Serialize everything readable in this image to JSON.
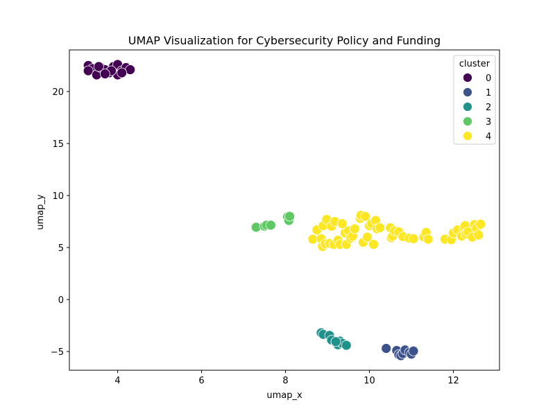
{
  "chart_data": {
    "type": "scatter",
    "title": "UMAP Visualization for Cybersecurity Policy and Funding",
    "xlabel": "umap_x",
    "ylabel": "umap_y",
    "xlim": [
      2.85,
      13.1
    ],
    "ylim": [
      -6.8,
      24.0
    ],
    "xticks": [
      4,
      6,
      8,
      10,
      12
    ],
    "yticks": [
      -5,
      0,
      5,
      10,
      15,
      20
    ],
    "legend": {
      "title": "cluster",
      "position": "top-right"
    },
    "grid": false,
    "series": [
      {
        "name": "0",
        "color": "#440154",
        "points": [
          [
            3.3,
            22.5
          ],
          [
            3.4,
            22.2
          ],
          [
            3.3,
            22.0
          ],
          [
            3.5,
            21.6
          ],
          [
            3.6,
            22.3
          ],
          [
            3.7,
            22.1
          ],
          [
            3.8,
            21.8
          ],
          [
            3.9,
            22.4
          ],
          [
            4.0,
            22.6
          ],
          [
            4.0,
            21.6
          ],
          [
            4.1,
            22.0
          ],
          [
            4.2,
            22.3
          ],
          [
            4.3,
            22.1
          ],
          [
            3.55,
            22.4
          ],
          [
            3.85,
            22.0
          ],
          [
            3.7,
            21.7
          ],
          [
            4.1,
            21.8
          ]
        ]
      },
      {
        "name": "1",
        "color": "#3b528b",
        "points": [
          [
            10.4,
            -4.7
          ],
          [
            10.65,
            -4.9
          ],
          [
            10.7,
            -5.3
          ],
          [
            10.75,
            -5.4
          ],
          [
            10.8,
            -5.2
          ],
          [
            10.85,
            -4.85
          ],
          [
            10.95,
            -5.1
          ],
          [
            11.0,
            -5.25
          ],
          [
            11.05,
            -4.95
          ]
        ]
      },
      {
        "name": "2",
        "color": "#21918c",
        "points": [
          [
            8.85,
            -3.2
          ],
          [
            8.9,
            -3.35
          ],
          [
            9.05,
            -3.45
          ],
          [
            9.1,
            -3.9
          ],
          [
            9.2,
            -4.15
          ],
          [
            9.25,
            -4.35
          ],
          [
            9.3,
            -4.0
          ],
          [
            9.35,
            -4.2
          ],
          [
            9.45,
            -4.4
          ],
          [
            9.2,
            -4.05
          ]
        ]
      },
      {
        "name": "3",
        "color": "#5ec962",
        "points": [
          [
            7.3,
            6.95
          ],
          [
            7.5,
            7.05
          ],
          [
            7.55,
            7.15
          ],
          [
            7.65,
            7.15
          ],
          [
            8.05,
            7.95
          ],
          [
            8.08,
            7.6
          ],
          [
            8.1,
            8.0
          ]
        ]
      },
      {
        "name": "4",
        "color": "#fde725",
        "points": [
          [
            8.65,
            5.8
          ],
          [
            8.75,
            6.7
          ],
          [
            8.85,
            5.85
          ],
          [
            8.88,
            5.1
          ],
          [
            8.9,
            7.1
          ],
          [
            8.95,
            5.35
          ],
          [
            8.98,
            7.7
          ],
          [
            9.05,
            5.4
          ],
          [
            9.1,
            7.05
          ],
          [
            9.15,
            5.3
          ],
          [
            9.18,
            7.5
          ],
          [
            9.25,
            5.7
          ],
          [
            9.3,
            5.3
          ],
          [
            9.35,
            7.3
          ],
          [
            9.42,
            6.4
          ],
          [
            9.45,
            5.3
          ],
          [
            9.5,
            6.6
          ],
          [
            9.55,
            5.9
          ],
          [
            9.6,
            6.1
          ],
          [
            9.65,
            6.8
          ],
          [
            9.78,
            7.8
          ],
          [
            9.8,
            8.1
          ],
          [
            9.85,
            5.5
          ],
          [
            9.9,
            8.0
          ],
          [
            9.95,
            6.0
          ],
          [
            10.0,
            7.1
          ],
          [
            10.05,
            7.3
          ],
          [
            10.1,
            5.3
          ],
          [
            10.15,
            7.6
          ],
          [
            10.18,
            6.8
          ],
          [
            10.25,
            6.9
          ],
          [
            10.5,
            6.9
          ],
          [
            10.52,
            5.95
          ],
          [
            10.55,
            6.1
          ],
          [
            10.6,
            6.6
          ],
          [
            10.7,
            6.5
          ],
          [
            10.8,
            6.05
          ],
          [
            10.95,
            5.9
          ],
          [
            11.05,
            5.85
          ],
          [
            11.3,
            6.0
          ],
          [
            11.35,
            6.45
          ],
          [
            11.4,
            5.8
          ],
          [
            11.8,
            5.8
          ],
          [
            11.95,
            5.75
          ],
          [
            12.0,
            6.4
          ],
          [
            12.1,
            6.7
          ],
          [
            12.2,
            6.1
          ],
          [
            12.25,
            6.9
          ],
          [
            12.28,
            7.1
          ],
          [
            12.3,
            6.3
          ],
          [
            12.35,
            6.5
          ],
          [
            12.45,
            6.0
          ],
          [
            12.5,
            7.2
          ],
          [
            12.55,
            6.85
          ],
          [
            12.6,
            6.2
          ],
          [
            12.65,
            7.25
          ]
        ]
      }
    ]
  }
}
